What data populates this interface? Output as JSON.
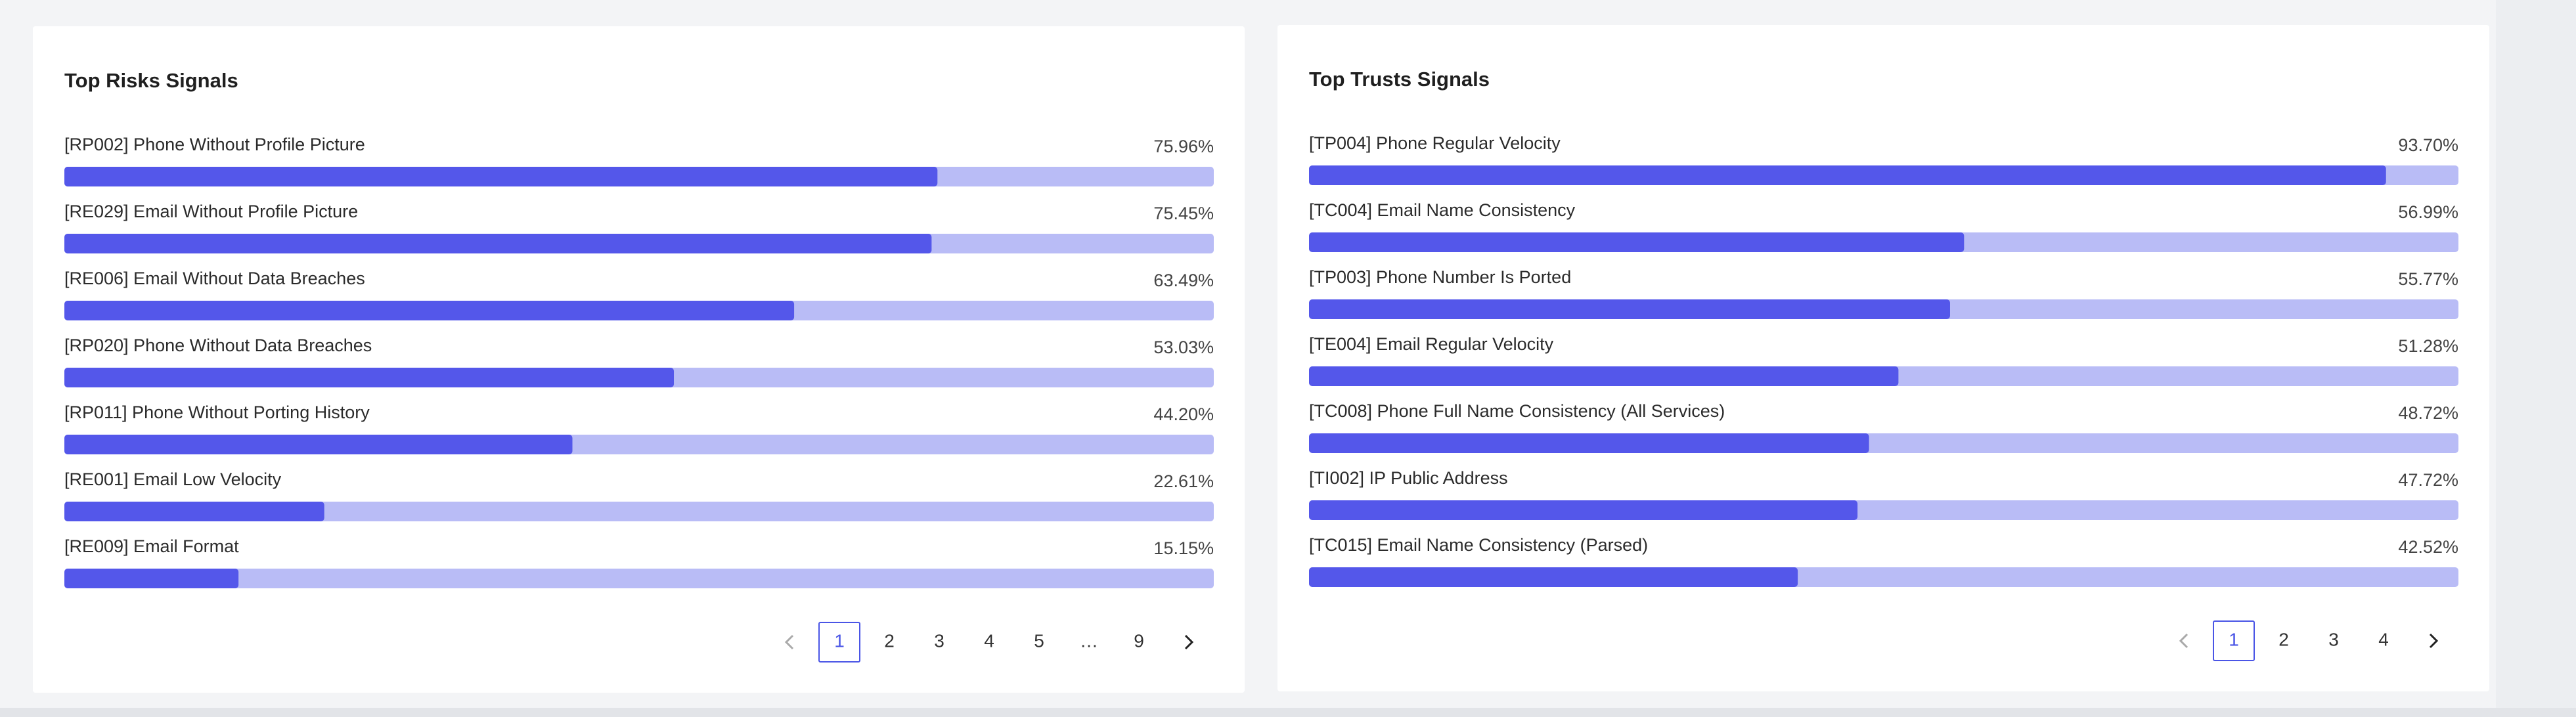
{
  "panels": [
    {
      "title": "Top Risks Signals",
      "items": [
        {
          "label": "[RP002] Phone Without Profile Picture",
          "value": 75.96,
          "value_label": "75.96%"
        },
        {
          "label": "[RE029] Email Without Profile Picture",
          "value": 75.45,
          "value_label": "75.45%"
        },
        {
          "label": "[RE006] Email Without Data Breaches",
          "value": 63.49,
          "value_label": "63.49%"
        },
        {
          "label": "[RP020] Phone Without Data Breaches",
          "value": 53.03,
          "value_label": "53.03%"
        },
        {
          "label": "[RP011] Phone Without Porting History",
          "value": 44.2,
          "value_label": "44.20%"
        },
        {
          "label": "[RE001] Email Low Velocity",
          "value": 22.61,
          "value_label": "22.61%"
        },
        {
          "label": "[RE009] Email Format",
          "value": 15.15,
          "value_label": "15.15%"
        }
      ],
      "pages": [
        "1",
        "2",
        "3",
        "4",
        "5",
        "…",
        "9"
      ]
    },
    {
      "title": "Top Trusts Signals",
      "items": [
        {
          "label": "[TP004] Phone Regular Velocity",
          "value": 93.7,
          "value_label": "93.70%"
        },
        {
          "label": "[TC004] Email Name Consistency",
          "value": 56.99,
          "value_label": "56.99%"
        },
        {
          "label": "[TP003] Phone Number Is Ported",
          "value": 55.77,
          "value_label": "55.77%"
        },
        {
          "label": "[TE004] Email Regular Velocity",
          "value": 51.28,
          "value_label": "51.28%"
        },
        {
          "label": "[TC008] Phone Full Name Consistency (All Services)",
          "value": 48.72,
          "value_label": "48.72%"
        },
        {
          "label": "[TI002] IP Public Address",
          "value": 47.72,
          "value_label": "47.72%"
        },
        {
          "label": "[TC015] Email Name Consistency (Parsed)",
          "value": 42.52,
          "value_label": "42.52%"
        }
      ],
      "pages": [
        "1",
        "2",
        "3",
        "4"
      ]
    }
  ]
}
